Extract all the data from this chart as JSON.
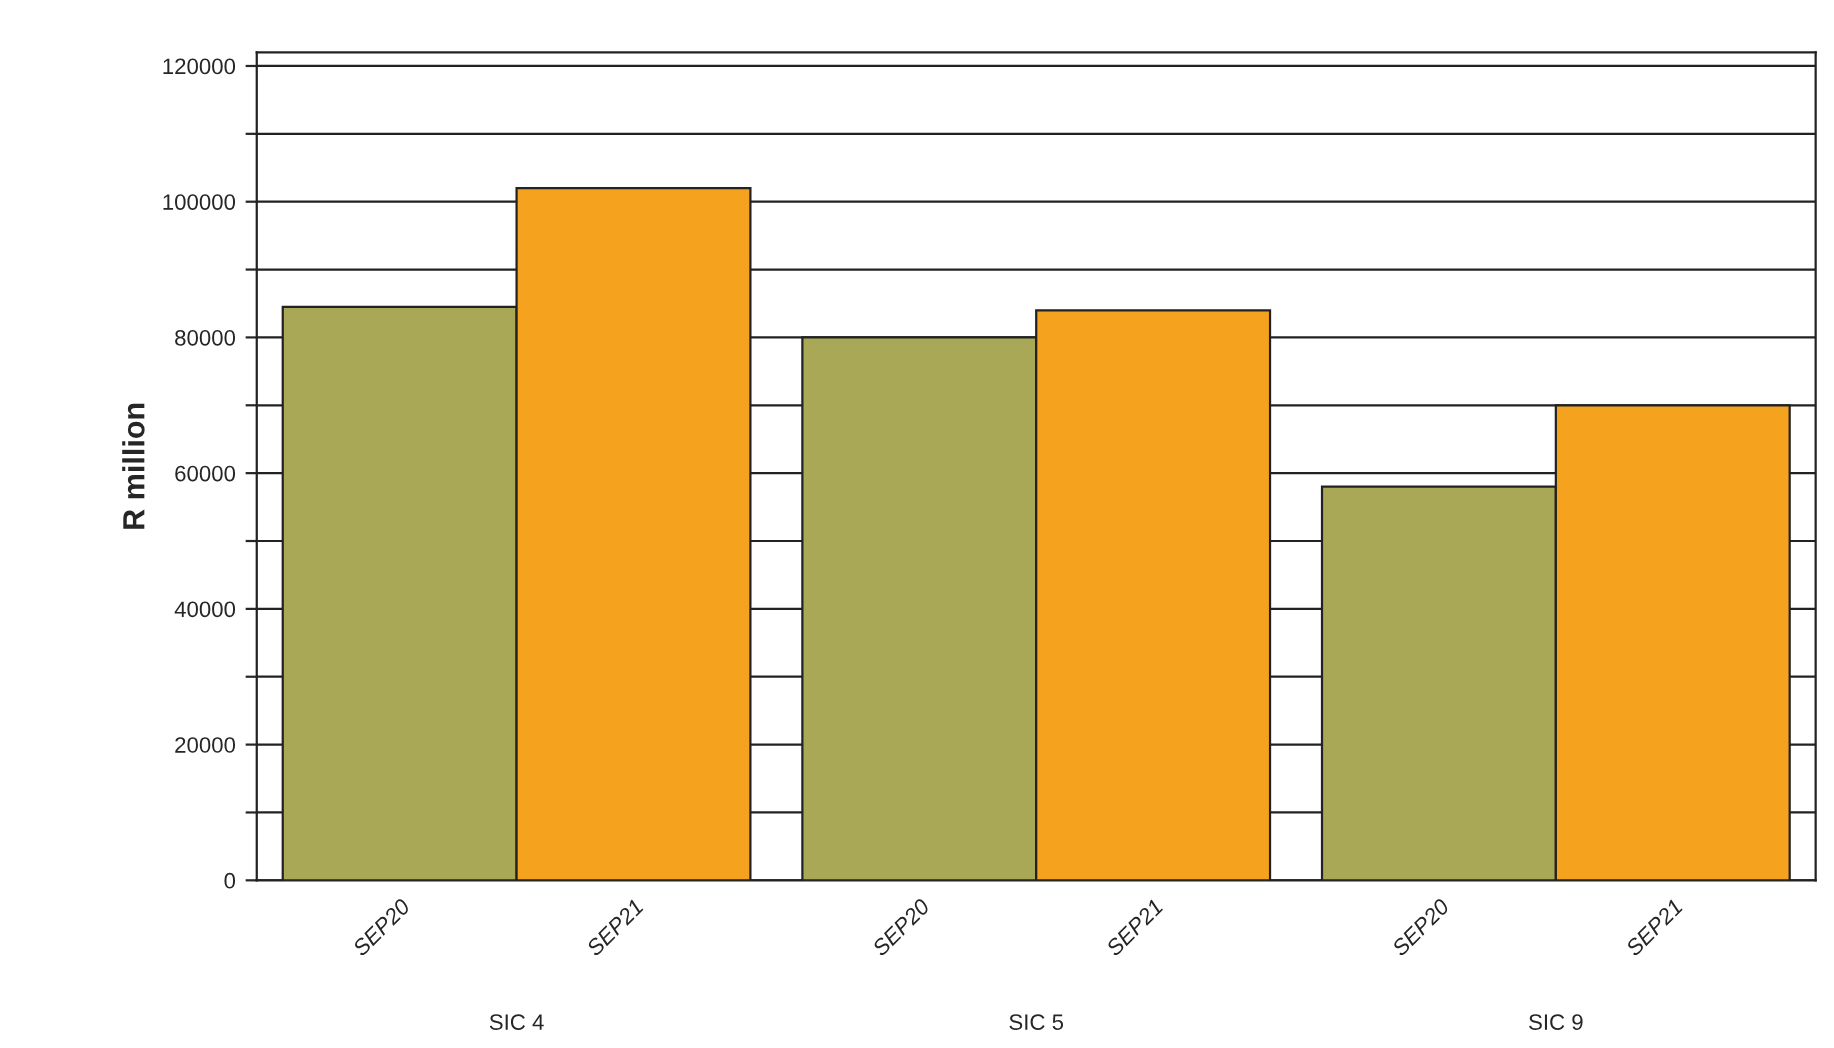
{
  "chart_data": {
    "type": "bar",
    "ylabel": "R million",
    "categories": [
      "SIC 4",
      "SIC 5",
      "SIC 9"
    ],
    "series": [
      {
        "name": "SEP20",
        "color": "#a8a857",
        "values": [
          84500,
          80000,
          58000
        ]
      },
      {
        "name": "SEP21",
        "color": "#f5a21e",
        "values": [
          102000,
          84000,
          70000
        ]
      }
    ],
    "ylim": [
      0,
      122000
    ],
    "yticks": [
      0,
      {
        "value": 10000,
        "label": null
      },
      20000,
      {
        "value": 30000,
        "label": null
      },
      40000,
      {
        "value": 50000,
        "label": null
      },
      60000,
      {
        "value": 70000,
        "label": null
      },
      80000,
      {
        "value": 90000,
        "label": null
      },
      100000,
      {
        "value": 110000,
        "label": null
      },
      120000
    ],
    "grid": "y",
    "legend": false
  }
}
